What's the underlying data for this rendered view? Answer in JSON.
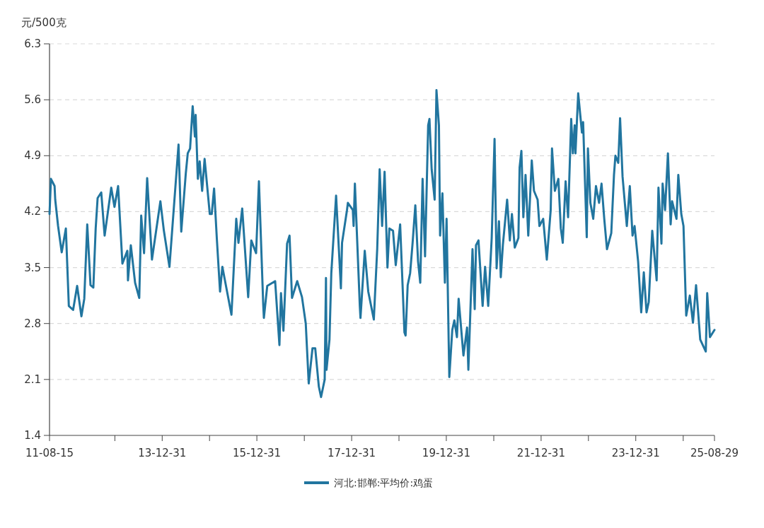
{
  "chart_data": {
    "type": "line",
    "ylabel": "元/500克",
    "legend": "bottom",
    "grid": "y",
    "marker": "none",
    "line_style": "solid",
    "xlim": [
      "2011-08-15",
      "2025-08-29"
    ],
    "xticks": [
      {
        "value": "2011-08-15",
        "label": "11-08-15"
      },
      {
        "value": "2012-12-31",
        "label": null
      },
      {
        "value": "2013-12-31",
        "label": "13-12-31"
      },
      {
        "value": "2014-12-31",
        "label": null
      },
      {
        "value": "2015-12-31",
        "label": "15-12-31"
      },
      {
        "value": "2016-12-31",
        "label": null
      },
      {
        "value": "2017-12-31",
        "label": "17-12-31"
      },
      {
        "value": "2018-12-31",
        "label": null
      },
      {
        "value": "2019-12-31",
        "label": "19-12-31"
      },
      {
        "value": "2020-12-31",
        "label": null
      },
      {
        "value": "2021-12-31",
        "label": "21-12-31"
      },
      {
        "value": "2022-12-31",
        "label": null
      },
      {
        "value": "2023-12-31",
        "label": "23-12-31"
      },
      {
        "value": "2024-12-31",
        "label": null
      },
      {
        "value": "2025-08-29",
        "label": "25-08-29"
      }
    ],
    "ylim": [
      1.4,
      6.3
    ],
    "yticks": [
      1.4,
      2.1,
      2.8,
      3.5,
      4.2,
      4.9,
      5.6,
      6.3
    ],
    "series": [
      {
        "name": "河北:邯郸:平均价:鸡蛋",
        "color": "#21759f",
        "x": [
          "2011-08-15",
          "2011-08-26",
          "2011-09-23",
          "2011-09-28",
          "2011-10-20",
          "2011-11-17",
          "2011-12-19",
          "2012-01-11",
          "2012-02-13",
          "2012-03-15",
          "2012-04-17",
          "2012-05-09",
          "2012-06-01",
          "2012-06-26",
          "2012-07-18",
          "2012-08-05",
          "2012-08-20",
          "2012-09-17",
          "2012-10-13",
          "2012-12-03",
          "2012-12-28",
          "2013-01-25",
          "2013-02-27",
          "2013-04-06",
          "2013-04-11",
          "2013-05-03",
          "2013-06-05",
          "2013-07-07",
          "2013-07-22",
          "2013-08-13",
          "2013-09-06",
          "2013-10-13",
          "2013-12-17",
          "2014-01-13",
          "2014-02-25",
          "2014-05-06",
          "2014-05-27",
          "2014-07-01",
          "2014-07-16",
          "2014-08-03",
          "2014-08-23",
          "2014-09-09",
          "2014-09-15",
          "2014-10-02",
          "2014-10-16",
          "2014-11-04",
          "2014-11-23",
          "2015-01-02",
          "2015-01-17",
          "2015-02-04",
          "2015-02-25",
          "2015-03-22",
          "2015-04-09",
          "2015-06-18",
          "2015-07-25",
          "2015-08-11",
          "2015-09-09",
          "2015-10-25",
          "2015-11-18",
          "2015-12-25",
          "2016-01-16",
          "2016-02-18",
          "2016-02-23",
          "2016-03-20",
          "2016-05-20",
          "2016-06-22",
          "2016-07-04",
          "2016-07-23",
          "2016-08-20",
          "2016-09-08",
          "2016-09-27",
          "2016-11-06",
          "2016-12-13",
          "2017-01-11",
          "2017-02-03",
          "2017-03-04",
          "2017-03-25",
          "2017-04-22",
          "2017-05-09",
          "2017-06-06",
          "2017-06-16",
          "2017-06-20",
          "2017-07-13",
          "2017-07-27",
          "2017-09-02",
          "2017-10-04",
          "2017-10-09",
          "2017-10-18",
          "2017-11-25",
          "2017-12-02",
          "2018-01-09",
          "2018-01-15",
          "2018-01-25",
          "2018-03-04",
          "2018-03-09",
          "2018-04-11",
          "2018-05-08",
          "2018-06-20",
          "2018-07-16",
          "2018-08-04",
          "2018-08-23",
          "2018-09-11",
          "2018-10-03",
          "2018-10-18",
          "2018-11-15",
          "2018-12-06",
          "2019-01-09",
          "2019-02-11",
          "2019-02-20",
          "2019-03-08",
          "2019-03-27",
          "2019-04-15",
          "2019-05-06",
          "2019-05-27",
          "2019-06-13",
          "2019-07-01",
          "2019-07-20",
          "2019-08-13",
          "2019-08-23",
          "2019-09-09",
          "2019-10-02",
          "2019-10-16",
          "2019-11-04",
          "2019-11-13",
          "2019-12-01",
          "2019-12-20",
          "2020-01-02",
          "2020-01-23",
          "2020-02-15",
          "2020-03-02",
          "2020-03-22",
          "2020-04-04",
          "2020-05-11",
          "2020-06-08",
          "2020-06-18",
          "2020-07-20",
          "2020-08-06",
          "2020-08-16",
          "2020-09-04",
          "2020-10-06",
          "2020-10-25",
          "2020-11-18",
          "2020-12-15",
          "2021-01-06",
          "2021-01-22",
          "2021-02-09",
          "2021-02-23",
          "2021-03-11",
          "2021-04-13",
          "2021-05-04",
          "2021-05-20",
          "2021-06-11",
          "2021-07-09",
          "2021-07-18",
          "2021-08-01",
          "2021-08-16",
          "2021-09-02",
          "2021-09-23",
          "2021-10-20",
          "2021-11-06",
          "2021-12-04",
          "2021-12-18",
          "2022-01-16",
          "2022-02-13",
          "2022-03-15",
          "2022-03-25",
          "2022-04-16",
          "2022-05-13",
          "2022-06-01",
          "2022-06-16",
          "2022-07-08",
          "2022-07-27",
          "2022-08-20",
          "2022-09-02",
          "2022-09-16",
          "2022-09-22",
          "2022-10-13",
          "2022-11-11",
          "2022-11-20",
          "2022-12-18",
          "2022-12-27",
          "2023-01-15",
          "2023-02-06",
          "2023-02-27",
          "2023-03-23",
          "2023-04-11",
          "2023-05-02",
          "2023-05-23",
          "2023-06-25",
          "2023-07-16",
          "2023-07-27",
          "2023-08-18",
          "2023-09-01",
          "2023-09-20",
          "2023-10-23",
          "2023-11-15",
          "2023-12-06",
          "2023-12-22",
          "2024-01-18",
          "2024-02-11",
          "2024-03-02",
          "2024-03-23",
          "2024-04-09",
          "2024-05-06",
          "2024-06-09",
          "2024-06-23",
          "2024-07-16",
          "2024-07-25",
          "2024-08-13",
          "2024-09-04",
          "2024-09-25",
          "2024-10-06",
          "2024-11-09",
          "2024-11-23",
          "2024-12-16",
          "2025-01-02",
          "2025-01-23",
          "2025-02-20",
          "2025-03-16",
          "2025-04-09",
          "2025-05-11",
          "2025-06-23",
          "2025-07-04",
          "2025-07-25",
          "2025-08-29"
        ],
        "values": [
          4.17,
          4.61,
          4.52,
          4.35,
          4.02,
          3.69,
          3.99,
          3.02,
          2.97,
          3.27,
          2.89,
          3.11,
          4.04,
          3.28,
          3.25,
          3.99,
          4.37,
          4.44,
          3.9,
          4.5,
          4.26,
          4.52,
          3.55,
          3.71,
          3.34,
          3.78,
          3.31,
          3.12,
          4.15,
          3.68,
          4.62,
          3.6,
          4.33,
          3.96,
          3.51,
          5.04,
          3.95,
          4.68,
          4.93,
          4.99,
          5.52,
          5.14,
          5.41,
          4.61,
          4.83,
          4.46,
          4.86,
          4.17,
          4.17,
          4.49,
          3.87,
          3.2,
          3.51,
          2.91,
          4.11,
          3.81,
          4.24,
          3.13,
          3.84,
          3.68,
          4.58,
          3.04,
          2.87,
          3.27,
          3.33,
          2.53,
          3.18,
          2.71,
          3.8,
          3.9,
          3.12,
          3.33,
          3.13,
          2.8,
          2.05,
          2.49,
          2.49,
          2.01,
          1.88,
          2.1,
          3.37,
          2.22,
          2.6,
          3.43,
          4.4,
          3.4,
          3.24,
          3.81,
          4.22,
          4.31,
          4.22,
          4.02,
          4.55,
          3.02,
          2.87,
          3.71,
          3.2,
          2.85,
          3.73,
          4.73,
          4.02,
          4.7,
          3.5,
          3.99,
          3.96,
          3.53,
          4.04,
          2.69,
          2.65,
          3.28,
          3.43,
          3.81,
          4.28,
          3.58,
          3.31,
          4.61,
          3.64,
          5.28,
          5.36,
          4.73,
          4.35,
          5.72,
          5.28,
          3.9,
          4.43,
          3.31,
          4.11,
          2.13,
          2.72,
          2.84,
          2.63,
          3.11,
          2.4,
          2.75,
          2.22,
          3.73,
          2.98,
          3.78,
          3.84,
          3.02,
          3.51,
          3.02,
          3.87,
          5.11,
          3.49,
          4.08,
          3.38,
          3.78,
          4.35,
          3.84,
          4.17,
          3.75,
          3.87,
          4.75,
          4.96,
          4.13,
          4.66,
          3.9,
          4.84,
          4.46,
          4.35,
          4.02,
          4.11,
          3.6,
          4.22,
          4.99,
          4.46,
          4.61,
          3.99,
          3.81,
          4.58,
          4.13,
          5.36,
          4.93,
          5.28,
          4.93,
          5.68,
          5.19,
          5.32,
          3.88,
          4.99,
          4.31,
          4.11,
          4.52,
          4.31,
          4.55,
          4.11,
          3.73,
          3.93,
          4.66,
          4.9,
          4.81,
          5.37,
          4.64,
          4.02,
          4.52,
          3.9,
          4.02,
          3.58,
          2.94,
          3.44,
          2.94,
          3.07,
          3.96,
          3.34,
          4.5,
          3.8,
          4.55,
          4.22,
          4.93,
          4.04,
          4.33,
          4.11,
          4.66,
          4.17,
          4.02,
          2.9,
          3.15,
          2.81,
          3.28,
          2.6,
          2.45,
          3.18,
          2.63,
          2.72
        ]
      }
    ]
  }
}
